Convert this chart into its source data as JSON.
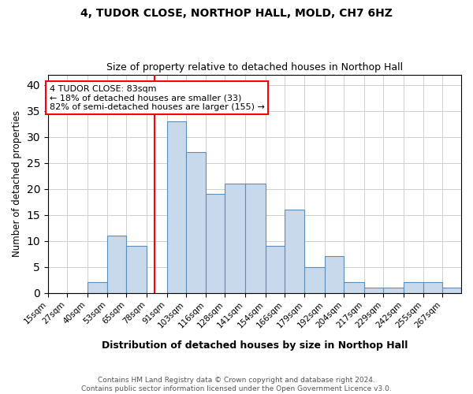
{
  "title1": "4, TUDOR CLOSE, NORTHOP HALL, MOLD, CH7 6HZ",
  "title2": "Size of property relative to detached houses in Northop Hall",
  "xlabel": "Distribution of detached houses by size in Northop Hall",
  "ylabel": "Number of detached properties",
  "footnote": "Contains HM Land Registry data © Crown copyright and database right 2024.\nContains public sector information licensed under the Open Government Licence v3.0.",
  "bin_labels": [
    "15sqm",
    "27sqm",
    "40sqm",
    "53sqm",
    "65sqm",
    "78sqm",
    "91sqm",
    "103sqm",
    "116sqm",
    "128sqm",
    "141sqm",
    "154sqm",
    "166sqm",
    "179sqm",
    "192sqm",
    "204sqm",
    "217sqm",
    "229sqm",
    "242sqm",
    "255sqm",
    "267sqm"
  ],
  "bin_edges": [
    15,
    27,
    40,
    53,
    65,
    78,
    91,
    103,
    116,
    128,
    141,
    154,
    166,
    179,
    192,
    204,
    217,
    229,
    242,
    255,
    267,
    279
  ],
  "bar_heights": [
    0,
    0,
    2,
    11,
    9,
    0,
    33,
    27,
    19,
    21,
    21,
    9,
    16,
    5,
    7,
    2,
    1,
    1,
    2,
    2,
    1
  ],
  "bar_color": "#c9d9ec",
  "bar_edge_color": "#5b8db8",
  "red_line_x": 83,
  "ylim": [
    0,
    42
  ],
  "yticks": [
    0,
    5,
    10,
    15,
    20,
    25,
    30,
    35,
    40
  ],
  "annotation_line1": "4 TUDOR CLOSE: 83sqm",
  "annotation_line2": "← 18% of detached houses are smaller (33)",
  "annotation_line3": "82% of semi-detached houses are larger (155) →",
  "annotation_box_color": "white",
  "annotation_box_edge_color": "red",
  "bg_color": "white",
  "grid_color": "#d0d0d0"
}
